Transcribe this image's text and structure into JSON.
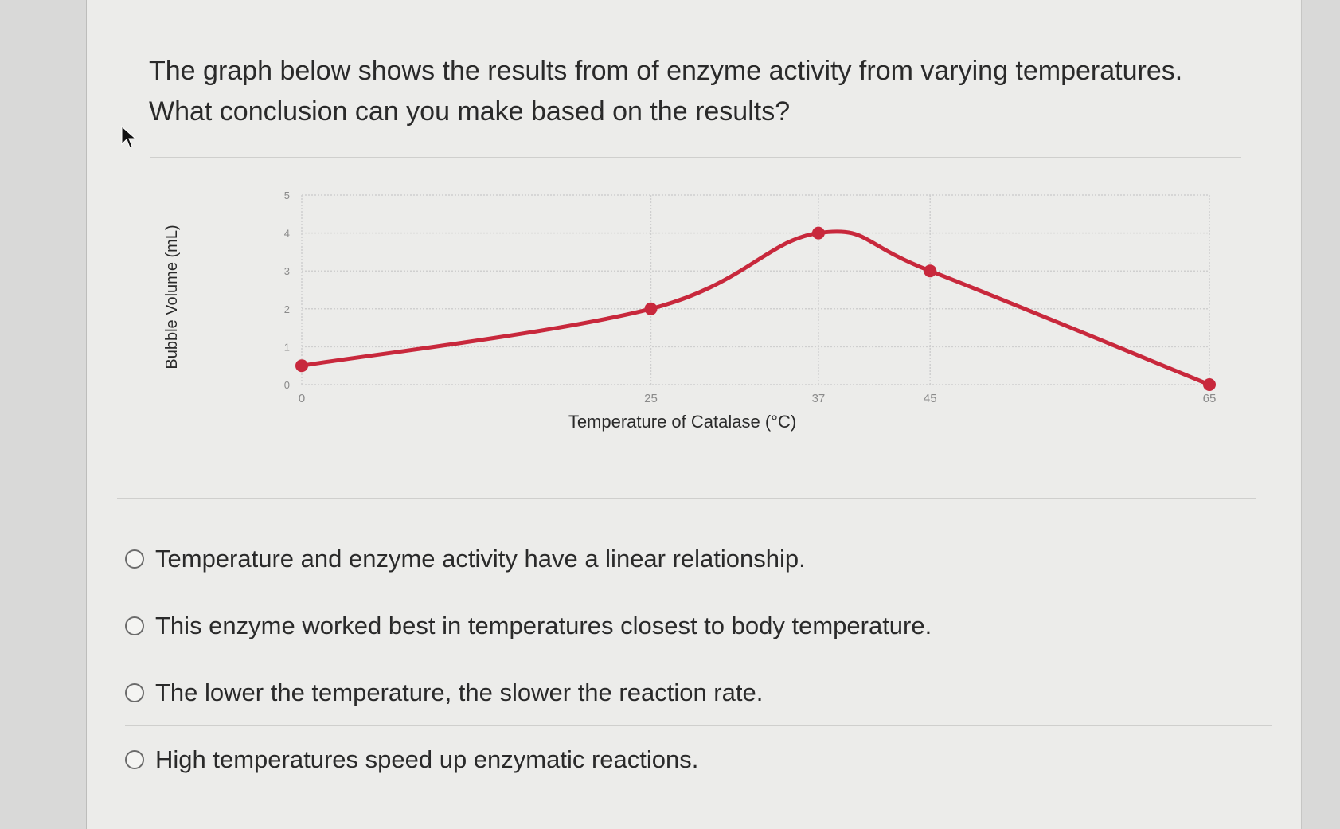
{
  "question": {
    "line1": "The graph below shows the results from of enzyme activity from varying temperatures.",
    "line2": "What conclusion can you make based on the results?"
  },
  "colors": {
    "series": "#c8283c",
    "grid": "#cfcfcf",
    "text": "#2a2a2a",
    "tick": "#8a8a8a"
  },
  "chart_data": {
    "type": "line",
    "xlabel": "Temperature of Catalase (°C)",
    "ylabel": "Bubble Volume (mL)",
    "x_ticks": [
      "0",
      "25",
      "37",
      "45",
      "65"
    ],
    "y_ticks": [
      "0",
      "1",
      "2",
      "3",
      "4",
      "5"
    ],
    "ylim": [
      0,
      5
    ],
    "x_categories": [
      0,
      25,
      37,
      45,
      65
    ],
    "series": [
      {
        "x": [
          0,
          25,
          37,
          45,
          65
        ],
        "y": [
          0.5,
          2,
          4,
          3,
          0
        ]
      }
    ],
    "grid": true,
    "smooth": true
  },
  "options": [
    {
      "label": "Temperature and enzyme activity have a linear relationship."
    },
    {
      "label": "This enzyme worked best in temperatures closest to body temperature."
    },
    {
      "label": "The lower the temperature, the slower the reaction rate."
    },
    {
      "label": "High temperatures speed up enzymatic reactions."
    }
  ]
}
